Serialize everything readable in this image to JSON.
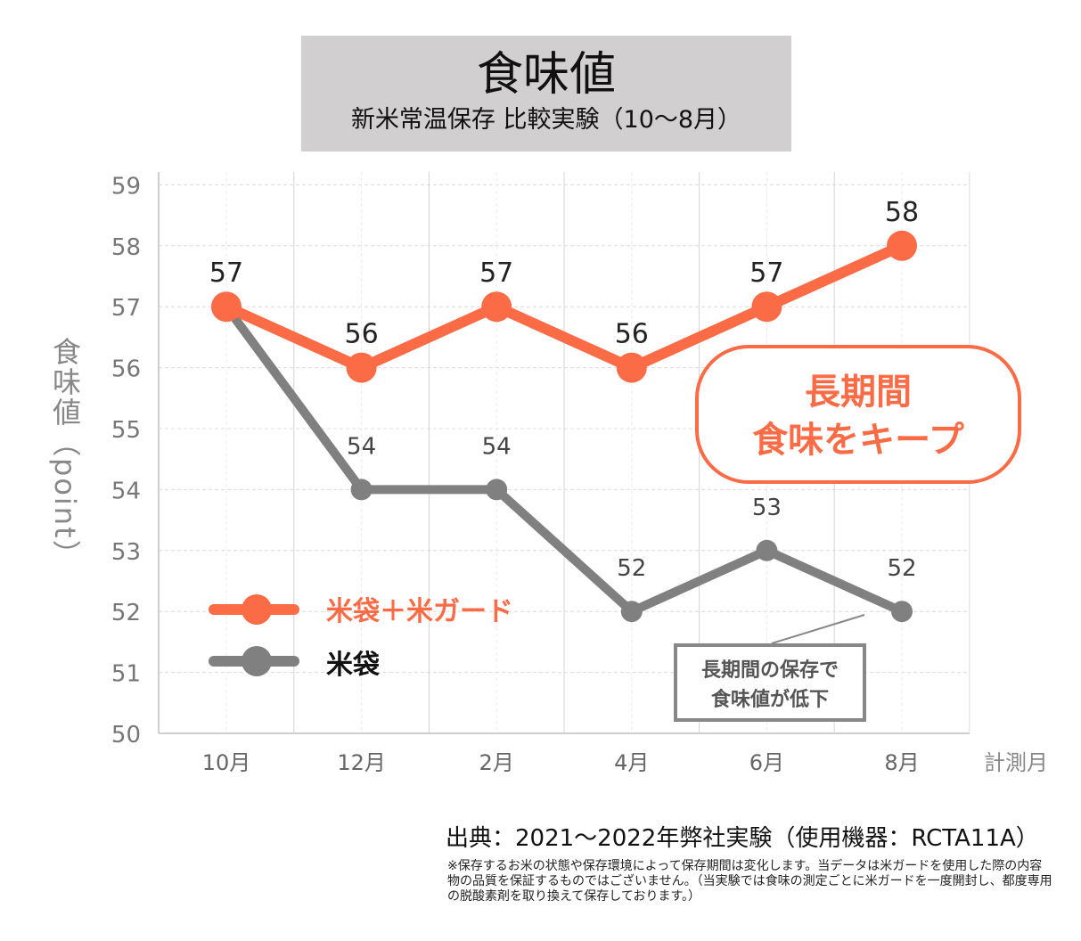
{
  "chart_data": {
    "type": "line",
    "title": "食味値",
    "subtitle": "新米常温保存 比較実験（10〜8月）",
    "xlabel": "計測月",
    "ylabel": "食味値（point）",
    "categories": [
      "10月",
      "12月",
      "2月",
      "4月",
      "6月",
      "8月"
    ],
    "y_ticks": [
      "50",
      "51",
      "52",
      "53",
      "54",
      "55",
      "56",
      "57",
      "58",
      "59"
    ],
    "ylim": [
      50,
      59
    ],
    "grid": true,
    "legend_position": "bottom-left",
    "series": [
      {
        "name": "米袋＋米ガード",
        "color": "#fa6b46",
        "values": [
          57,
          56,
          57,
          56,
          57,
          58
        ],
        "data_labels": [
          "57",
          "56",
          "57",
          "56",
          "57",
          "58"
        ]
      },
      {
        "name": "米袋",
        "color": "#808080",
        "values": [
          57,
          54,
          54,
          52,
          53,
          52
        ],
        "data_labels": [
          "",
          "54",
          "54",
          "52",
          "53",
          "52"
        ]
      }
    ],
    "annotations": {
      "highlight_line1": "長期間",
      "highlight_line2": "食味をキープ",
      "callout_line1": "長期間の保存で",
      "callout_line2": "食味値が低下"
    }
  },
  "source": "出典：2021〜2022年弊社実験（使用機器：RCTA11A）",
  "note": "※保存するお米の状態や保存環境によって保存期間は変化します。当データは米ガードを使用した際の内容物の品質を保証するものではございません。（当実験では食味の測定ごとに米ガードを一度開封し、都度専用の脱酸素剤を取り換えて保存しております。）"
}
